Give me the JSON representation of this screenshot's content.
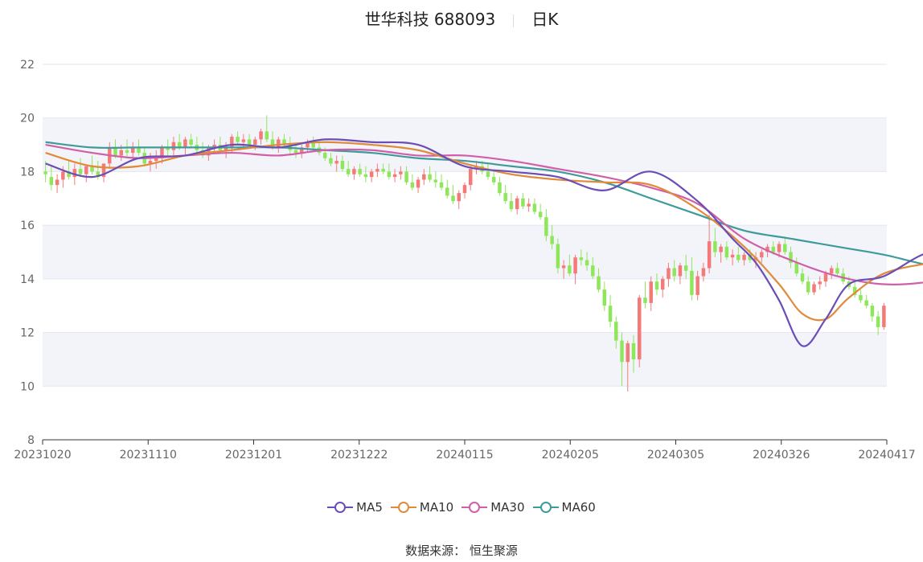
{
  "header": {
    "name": "世华科技 688093",
    "period": "日K"
  },
  "source": "数据来源： 恒生聚源",
  "colors": {
    "up": "#f47a7a",
    "down": "#8ee65a",
    "ma5": "#6a4db5",
    "ma10": "#e08a3a",
    "ma30": "#d15fa8",
    "ma60": "#3f9a9a",
    "band": "#f3f4fa",
    "grid": "#e3e6f0",
    "axis": "#333333"
  },
  "chart_data": {
    "type": "candlestick",
    "title": "世华科技 688093",
    "subtitle": "日K",
    "ylim": [
      8,
      22
    ],
    "yticks": [
      8,
      10,
      12,
      14,
      16,
      18,
      20,
      22
    ],
    "xtick_labels": [
      "20231020",
      "20231110",
      "20231201",
      "20231222",
      "20240115",
      "20240205",
      "20240305",
      "20240326",
      "20240417"
    ],
    "legend": [
      "MA5",
      "MA10",
      "MA30",
      "MA60"
    ],
    "series": [
      {
        "name": "MA5",
        "x": [
          0,
          8,
          16,
          24,
          32,
          40,
          48,
          56,
          64,
          72,
          80,
          88,
          96,
          104,
          112,
          118,
          122,
          126,
          130,
          134,
          138,
          144,
          152,
          160,
          168
        ],
        "values": [
          18.3,
          17.8,
          18.5,
          18.6,
          19.0,
          18.9,
          19.2,
          19.1,
          19.0,
          18.2,
          18.0,
          17.8,
          17.3,
          18.0,
          16.9,
          15.5,
          14.6,
          13.2,
          11.5,
          12.5,
          13.8,
          14.1,
          15.0,
          14.8,
          14.9
        ]
      },
      {
        "name": "MA10",
        "x": [
          0,
          8,
          16,
          24,
          32,
          40,
          48,
          56,
          64,
          72,
          80,
          88,
          96,
          104,
          112,
          120,
          126,
          130,
          134,
          138,
          144,
          152,
          160,
          168
        ],
        "values": [
          18.7,
          18.2,
          18.2,
          18.6,
          18.8,
          19.0,
          19.1,
          19.0,
          18.8,
          18.3,
          17.9,
          17.7,
          17.6,
          17.5,
          16.6,
          15.2,
          13.8,
          12.7,
          12.5,
          13.3,
          14.2,
          14.6,
          14.9,
          14.4
        ]
      },
      {
        "name": "MA30",
        "x": [
          0,
          8,
          16,
          24,
          32,
          40,
          48,
          56,
          64,
          72,
          80,
          88,
          96,
          104,
          112,
          120,
          128,
          136,
          144,
          152,
          160,
          168
        ],
        "values": [
          19.0,
          18.7,
          18.5,
          18.6,
          18.7,
          18.6,
          18.8,
          18.8,
          18.6,
          18.6,
          18.4,
          18.1,
          17.8,
          17.4,
          16.8,
          15.5,
          14.7,
          14.1,
          13.8,
          13.9,
          14.3,
          14.4
        ]
      },
      {
        "name": "MA60",
        "x": [
          0,
          8,
          16,
          24,
          32,
          40,
          48,
          56,
          64,
          72,
          80,
          88,
          96,
          104,
          112,
          120,
          128,
          136,
          144,
          152,
          160,
          168
        ],
        "values": [
          19.1,
          18.9,
          18.9,
          18.9,
          18.9,
          18.9,
          18.8,
          18.7,
          18.5,
          18.4,
          18.2,
          18.0,
          17.6,
          17.0,
          16.4,
          15.8,
          15.5,
          15.2,
          14.9,
          14.5,
          14.3,
          14.1
        ]
      }
    ],
    "candles": [
      {
        "o": 18.0,
        "h": 18.4,
        "l": 17.6,
        "c": 17.9
      },
      {
        "o": 17.8,
        "h": 18.2,
        "l": 17.3,
        "c": 17.5
      },
      {
        "o": 17.5,
        "h": 17.9,
        "l": 17.2,
        "c": 17.7
      },
      {
        "o": 17.7,
        "h": 18.2,
        "l": 17.4,
        "c": 18.0
      },
      {
        "o": 18.0,
        "h": 18.4,
        "l": 17.7,
        "c": 17.8
      },
      {
        "o": 17.8,
        "h": 18.3,
        "l": 17.5,
        "c": 18.1
      },
      {
        "o": 18.1,
        "h": 18.5,
        "l": 17.8,
        "c": 17.9
      },
      {
        "o": 17.9,
        "h": 18.2,
        "l": 17.6,
        "c": 18.2
      },
      {
        "o": 18.2,
        "h": 18.6,
        "l": 17.9,
        "c": 18.0
      },
      {
        "o": 18.0,
        "h": 18.4,
        "l": 17.7,
        "c": 17.8
      },
      {
        "o": 17.8,
        "h": 18.3,
        "l": 17.6,
        "c": 18.3
      },
      {
        "o": 18.3,
        "h": 19.1,
        "l": 18.1,
        "c": 18.9
      },
      {
        "o": 18.9,
        "h": 19.2,
        "l": 18.5,
        "c": 18.6
      },
      {
        "o": 18.6,
        "h": 19.0,
        "l": 18.4,
        "c": 18.8
      },
      {
        "o": 18.8,
        "h": 19.2,
        "l": 18.5,
        "c": 18.7
      },
      {
        "o": 18.7,
        "h": 19.1,
        "l": 18.4,
        "c": 18.9
      },
      {
        "o": 18.9,
        "h": 19.2,
        "l": 18.6,
        "c": 18.7
      },
      {
        "o": 18.7,
        "h": 18.9,
        "l": 18.2,
        "c": 18.3
      },
      {
        "o": 18.3,
        "h": 18.7,
        "l": 18.0,
        "c": 18.4
      },
      {
        "o": 18.4,
        "h": 18.8,
        "l": 18.1,
        "c": 18.5
      },
      {
        "o": 18.5,
        "h": 19.0,
        "l": 18.3,
        "c": 18.9
      },
      {
        "o": 18.9,
        "h": 19.2,
        "l": 18.6,
        "c": 18.8
      },
      {
        "o": 18.8,
        "h": 19.3,
        "l": 18.5,
        "c": 19.1
      },
      {
        "o": 19.1,
        "h": 19.4,
        "l": 18.8,
        "c": 18.9
      },
      {
        "o": 18.9,
        "h": 19.3,
        "l": 18.6,
        "c": 19.2
      },
      {
        "o": 19.2,
        "h": 19.4,
        "l": 18.9,
        "c": 19.0
      },
      {
        "o": 19.0,
        "h": 19.3,
        "l": 18.6,
        "c": 18.8
      },
      {
        "o": 18.8,
        "h": 19.1,
        "l": 18.5,
        "c": 18.6
      },
      {
        "o": 18.6,
        "h": 19.0,
        "l": 18.4,
        "c": 18.9
      },
      {
        "o": 18.9,
        "h": 19.2,
        "l": 18.7,
        "c": 19.0
      },
      {
        "o": 19.0,
        "h": 19.3,
        "l": 18.7,
        "c": 18.8
      },
      {
        "o": 18.8,
        "h": 19.1,
        "l": 18.5,
        "c": 18.9
      },
      {
        "o": 18.9,
        "h": 19.4,
        "l": 18.7,
        "c": 19.3
      },
      {
        "o": 19.3,
        "h": 19.5,
        "l": 19.0,
        "c": 19.1
      },
      {
        "o": 19.1,
        "h": 19.4,
        "l": 18.9,
        "c": 19.2
      },
      {
        "o": 19.2,
        "h": 19.4,
        "l": 18.9,
        "c": 19.0
      },
      {
        "o": 19.0,
        "h": 19.3,
        "l": 18.8,
        "c": 19.2
      },
      {
        "o": 19.2,
        "h": 19.6,
        "l": 19.0,
        "c": 19.5
      },
      {
        "o": 19.5,
        "h": 20.1,
        "l": 19.1,
        "c": 19.2
      },
      {
        "o": 19.2,
        "h": 19.5,
        "l": 18.8,
        "c": 18.9
      },
      {
        "o": 18.9,
        "h": 19.3,
        "l": 18.7,
        "c": 19.2
      },
      {
        "o": 19.2,
        "h": 19.4,
        "l": 18.9,
        "c": 19.0
      },
      {
        "o": 19.0,
        "h": 19.3,
        "l": 18.6,
        "c": 18.8
      },
      {
        "o": 18.8,
        "h": 19.0,
        "l": 18.5,
        "c": 18.7
      },
      {
        "o": 18.7,
        "h": 19.0,
        "l": 18.5,
        "c": 18.9
      },
      {
        "o": 18.9,
        "h": 19.2,
        "l": 18.7,
        "c": 19.1
      },
      {
        "o": 19.1,
        "h": 19.3,
        "l": 18.8,
        "c": 18.9
      },
      {
        "o": 18.9,
        "h": 19.1,
        "l": 18.6,
        "c": 18.7
      },
      {
        "o": 18.7,
        "h": 18.9,
        "l": 18.4,
        "c": 18.5
      },
      {
        "o": 18.5,
        "h": 18.7,
        "l": 18.2,
        "c": 18.3
      },
      {
        "o": 18.3,
        "h": 18.6,
        "l": 18.0,
        "c": 18.4
      },
      {
        "o": 18.4,
        "h": 18.6,
        "l": 18.0,
        "c": 18.1
      },
      {
        "o": 18.1,
        "h": 18.4,
        "l": 17.8,
        "c": 17.9
      },
      {
        "o": 17.9,
        "h": 18.2,
        "l": 17.7,
        "c": 18.1
      },
      {
        "o": 18.1,
        "h": 18.3,
        "l": 17.8,
        "c": 17.9
      },
      {
        "o": 17.9,
        "h": 18.2,
        "l": 17.6,
        "c": 17.8
      },
      {
        "o": 17.8,
        "h": 18.1,
        "l": 17.6,
        "c": 18.0
      },
      {
        "o": 18.0,
        "h": 18.3,
        "l": 17.8,
        "c": 18.1
      },
      {
        "o": 18.1,
        "h": 18.3,
        "l": 17.9,
        "c": 18.0
      },
      {
        "o": 18.0,
        "h": 18.3,
        "l": 17.7,
        "c": 17.8
      },
      {
        "o": 17.8,
        "h": 18.1,
        "l": 17.6,
        "c": 17.9
      },
      {
        "o": 17.9,
        "h": 18.2,
        "l": 17.7,
        "c": 18.0
      },
      {
        "o": 18.0,
        "h": 18.2,
        "l": 17.5,
        "c": 17.6
      },
      {
        "o": 17.6,
        "h": 17.9,
        "l": 17.3,
        "c": 17.4
      },
      {
        "o": 17.4,
        "h": 17.8,
        "l": 17.2,
        "c": 17.7
      },
      {
        "o": 17.7,
        "h": 18.1,
        "l": 17.5,
        "c": 17.9
      },
      {
        "o": 17.9,
        "h": 18.2,
        "l": 17.6,
        "c": 17.7
      },
      {
        "o": 17.7,
        "h": 18.0,
        "l": 17.4,
        "c": 17.6
      },
      {
        "o": 17.6,
        "h": 17.9,
        "l": 17.3,
        "c": 17.4
      },
      {
        "o": 17.4,
        "h": 17.7,
        "l": 17.0,
        "c": 17.1
      },
      {
        "o": 17.1,
        "h": 17.5,
        "l": 16.8,
        "c": 16.9
      },
      {
        "o": 16.9,
        "h": 17.3,
        "l": 16.6,
        "c": 17.2
      },
      {
        "o": 17.2,
        "h": 17.6,
        "l": 17.0,
        "c": 17.5
      },
      {
        "o": 17.5,
        "h": 18.2,
        "l": 17.3,
        "c": 18.1
      },
      {
        "o": 18.1,
        "h": 18.4,
        "l": 17.9,
        "c": 18.2
      },
      {
        "o": 18.2,
        "h": 18.4,
        "l": 17.9,
        "c": 18.0
      },
      {
        "o": 18.0,
        "h": 18.3,
        "l": 17.7,
        "c": 17.8
      },
      {
        "o": 17.8,
        "h": 18.0,
        "l": 17.5,
        "c": 17.6
      },
      {
        "o": 17.6,
        "h": 17.8,
        "l": 17.1,
        "c": 17.2
      },
      {
        "o": 17.2,
        "h": 17.5,
        "l": 16.8,
        "c": 16.9
      },
      {
        "o": 16.9,
        "h": 17.2,
        "l": 16.5,
        "c": 16.6
      },
      {
        "o": 16.6,
        "h": 17.1,
        "l": 16.4,
        "c": 17.0
      },
      {
        "o": 17.0,
        "h": 17.2,
        "l": 16.6,
        "c": 16.7
      },
      {
        "o": 16.7,
        "h": 17.0,
        "l": 16.5,
        "c": 16.8
      },
      {
        "o": 16.8,
        "h": 17.0,
        "l": 16.4,
        "c": 16.5
      },
      {
        "o": 16.5,
        "h": 16.8,
        "l": 16.2,
        "c": 16.3
      },
      {
        "o": 16.3,
        "h": 16.6,
        "l": 15.4,
        "c": 15.6
      },
      {
        "o": 15.6,
        "h": 16.0,
        "l": 15.1,
        "c": 15.3
      },
      {
        "o": 15.3,
        "h": 15.5,
        "l": 14.2,
        "c": 14.4
      },
      {
        "o": 14.4,
        "h": 14.7,
        "l": 14.0,
        "c": 14.5
      },
      {
        "o": 14.5,
        "h": 14.9,
        "l": 14.1,
        "c": 14.2
      },
      {
        "o": 14.2,
        "h": 14.9,
        "l": 13.8,
        "c": 14.8
      },
      {
        "o": 14.8,
        "h": 15.1,
        "l": 14.5,
        "c": 14.7
      },
      {
        "o": 14.7,
        "h": 15.0,
        "l": 14.3,
        "c": 14.5
      },
      {
        "o": 14.5,
        "h": 14.8,
        "l": 14.0,
        "c": 14.1
      },
      {
        "o": 14.1,
        "h": 14.4,
        "l": 13.5,
        "c": 13.6
      },
      {
        "o": 13.6,
        "h": 13.9,
        "l": 12.8,
        "c": 13.0
      },
      {
        "o": 13.0,
        "h": 13.4,
        "l": 12.2,
        "c": 12.4
      },
      {
        "o": 12.4,
        "h": 12.6,
        "l": 11.4,
        "c": 11.7
      },
      {
        "o": 11.7,
        "h": 12.0,
        "l": 10.0,
        "c": 10.9
      },
      {
        "o": 10.9,
        "h": 11.7,
        "l": 9.8,
        "c": 11.6
      },
      {
        "o": 11.6,
        "h": 11.9,
        "l": 10.5,
        "c": 11.0
      },
      {
        "o": 11.0,
        "h": 13.4,
        "l": 10.7,
        "c": 13.3
      },
      {
        "o": 13.3,
        "h": 13.9,
        "l": 12.9,
        "c": 13.1
      },
      {
        "o": 13.1,
        "h": 14.1,
        "l": 12.8,
        "c": 13.9
      },
      {
        "o": 13.9,
        "h": 14.2,
        "l": 13.4,
        "c": 13.6
      },
      {
        "o": 13.6,
        "h": 14.1,
        "l": 13.3,
        "c": 14.0
      },
      {
        "o": 14.0,
        "h": 14.6,
        "l": 13.7,
        "c": 14.4
      },
      {
        "o": 14.4,
        "h": 14.7,
        "l": 13.9,
        "c": 14.1
      },
      {
        "o": 14.1,
        "h": 14.6,
        "l": 13.8,
        "c": 14.5
      },
      {
        "o": 14.5,
        "h": 14.9,
        "l": 14.0,
        "c": 14.3
      },
      {
        "o": 14.3,
        "h": 14.8,
        "l": 13.2,
        "c": 13.4
      },
      {
        "o": 13.4,
        "h": 14.3,
        "l": 13.2,
        "c": 14.1
      },
      {
        "o": 14.1,
        "h": 14.6,
        "l": 13.9,
        "c": 14.4
      },
      {
        "o": 14.4,
        "h": 16.4,
        "l": 14.2,
        "c": 15.4
      },
      {
        "o": 15.4,
        "h": 15.9,
        "l": 14.8,
        "c": 15.0
      },
      {
        "o": 15.0,
        "h": 15.3,
        "l": 14.6,
        "c": 15.2
      },
      {
        "o": 15.2,
        "h": 15.4,
        "l": 14.7,
        "c": 14.8
      },
      {
        "o": 14.8,
        "h": 15.1,
        "l": 14.5,
        "c": 14.9
      },
      {
        "o": 14.9,
        "h": 15.2,
        "l": 14.6,
        "c": 14.7
      },
      {
        "o": 14.7,
        "h": 15.0,
        "l": 14.5,
        "c": 14.9
      },
      {
        "o": 14.9,
        "h": 15.1,
        "l": 14.6,
        "c": 14.7
      },
      {
        "o": 14.7,
        "h": 15.0,
        "l": 14.4,
        "c": 14.8
      },
      {
        "o": 14.8,
        "h": 15.1,
        "l": 14.6,
        "c": 15.0
      },
      {
        "o": 15.0,
        "h": 15.3,
        "l": 14.8,
        "c": 15.2
      },
      {
        "o": 15.2,
        "h": 15.4,
        "l": 14.9,
        "c": 15.0
      },
      {
        "o": 15.0,
        "h": 15.4,
        "l": 14.8,
        "c": 15.3
      },
      {
        "o": 15.3,
        "h": 15.5,
        "l": 14.9,
        "c": 15.0
      },
      {
        "o": 15.0,
        "h": 15.2,
        "l": 14.4,
        "c": 14.6
      },
      {
        "o": 14.6,
        "h": 14.8,
        "l": 14.1,
        "c": 14.2
      },
      {
        "o": 14.2,
        "h": 14.4,
        "l": 13.8,
        "c": 13.9
      },
      {
        "o": 13.9,
        "h": 14.1,
        "l": 13.4,
        "c": 13.5
      },
      {
        "o": 13.5,
        "h": 13.9,
        "l": 13.4,
        "c": 13.8
      },
      {
        "o": 13.8,
        "h": 14.1,
        "l": 13.6,
        "c": 13.9
      },
      {
        "o": 13.9,
        "h": 14.3,
        "l": 13.7,
        "c": 14.2
      },
      {
        "o": 14.2,
        "h": 14.5,
        "l": 14.0,
        "c": 14.4
      },
      {
        "o": 14.4,
        "h": 14.6,
        "l": 14.1,
        "c": 14.2
      },
      {
        "o": 14.2,
        "h": 14.4,
        "l": 13.8,
        "c": 13.9
      },
      {
        "o": 13.9,
        "h": 14.1,
        "l": 13.6,
        "c": 13.7
      },
      {
        "o": 13.7,
        "h": 13.9,
        "l": 13.3,
        "c": 13.4
      },
      {
        "o": 13.4,
        "h": 13.6,
        "l": 13.1,
        "c": 13.2
      },
      {
        "o": 13.2,
        "h": 13.4,
        "l": 12.9,
        "c": 13.0
      },
      {
        "o": 13.0,
        "h": 13.1,
        "l": 12.4,
        "c": 12.6
      },
      {
        "o": 12.6,
        "h": 12.8,
        "l": 11.9,
        "c": 12.2
      },
      {
        "o": 12.2,
        "h": 13.1,
        "l": 12.1,
        "c": 13.0
      }
    ]
  }
}
